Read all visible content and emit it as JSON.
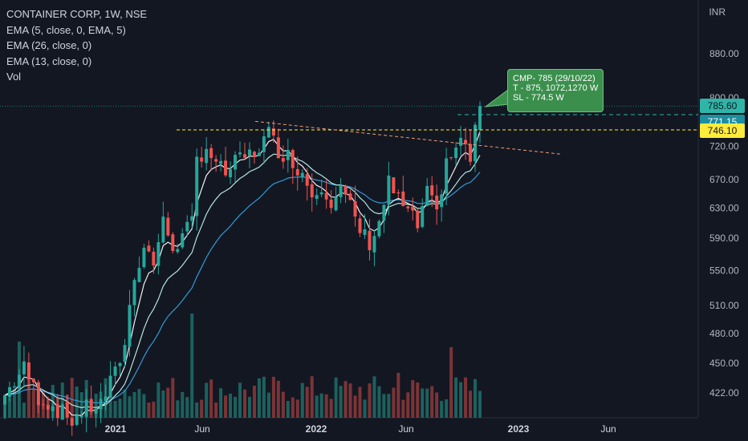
{
  "legend": {
    "title": "CONTAINER CORP, 1W, NSE",
    "ema1": "EMA (5, close, 0, EMA, 5)",
    "ema2": "EMA (26, close, 0)",
    "ema3": "EMA (13, close, 0)",
    "vol": "Vol"
  },
  "currency": "INR",
  "callout": {
    "line1": "CMP- 785 (29/10/22)",
    "line2": "T - 875, 1072,1270 W",
    "line3": "SL - 774.5 W"
  },
  "price_tags": [
    {
      "label": "785.60",
      "value": 785.6,
      "bg": "#2fb5a7",
      "color": "#131722"
    },
    {
      "label": "771.15",
      "value": 771.15,
      "bg": "#1c8e9e",
      "color": "#ffffff"
    },
    {
      "label": "746.10",
      "value": 746.1,
      "bg": "#ffeb3b",
      "color": "#131722"
    }
  ],
  "colors": {
    "up": "#26a69a",
    "down": "#ef5350",
    "ema5": "#f0f0f0",
    "ema13": "#b3e5e0",
    "ema26": "#2f9bd6",
    "resistance": "#ffeb3b",
    "trendline": "#f0a070"
  },
  "chart_data": {
    "type": "candlestick",
    "y_ticks": [
      422,
      450,
      480,
      510,
      550,
      590,
      630,
      670,
      720,
      800,
      880
    ],
    "y_tick_labels": [
      "422.00",
      "450.00",
      "480.00",
      "510.00",
      "550.00",
      "590.00",
      "630.00",
      "670.00",
      "720.00",
      "800.00",
      "880.00"
    ],
    "x_ticks": [
      {
        "label": "2021",
        "bold": true
      },
      {
        "label": "Jun",
        "bold": false
      },
      {
        "label": "2022",
        "bold": true
      },
      {
        "label": "Jun",
        "bold": false
      },
      {
        "label": "2023",
        "bold": true
      },
      {
        "label": "Jun",
        "bold": false
      }
    ],
    "log_scale": true,
    "resistance_level": 746.1,
    "current_price": 785.6
  }
}
